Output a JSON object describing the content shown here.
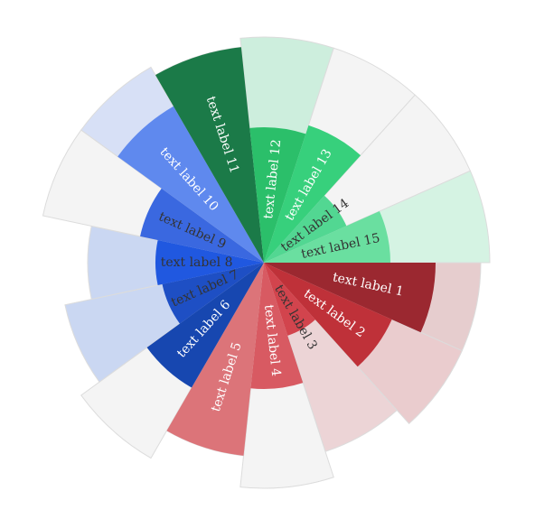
{
  "chart_data": {
    "type": "polar-bar",
    "title": "",
    "max_value": 100,
    "items": [
      {
        "label": "text label 1",
        "value": 76,
        "cap": 96,
        "color": "#9b2830",
        "bg": "#e6cdce",
        "text_color": "#ffffff"
      },
      {
        "label": "text label 2",
        "value": 62,
        "cap": 96,
        "color": "#bf3139",
        "bg": "#eaccce",
        "text_color": "#ffffff"
      },
      {
        "label": "text label 3",
        "value": 34,
        "cap": 88,
        "color": "#d2444d",
        "bg": "#ecd4d6",
        "text_color": "#333333"
      },
      {
        "label": "text label 4",
        "value": 56,
        "cap": 100,
        "color": "#d85a62",
        "bg": "#f4f4f4",
        "text_color": "#ffffff"
      },
      {
        "label": "text label 5",
        "value": 86,
        "cap": 86,
        "color": "#dc7479",
        "bg": "#f4f4f4",
        "text_color": "#ffffff"
      },
      {
        "label": "text label 6",
        "value": 64,
        "cap": 100,
        "color": "#1747b0",
        "bg": "#f4f4f4",
        "text_color": "#ffffff"
      },
      {
        "label": "text label 7",
        "value": 46,
        "cap": 90,
        "color": "#1e4fc4",
        "bg": "#cad7f2",
        "text_color": "#333333"
      },
      {
        "label": "text label 8",
        "value": 48,
        "cap": 78,
        "color": "#2058e0",
        "bg": "#cad7f2",
        "text_color": "#333333"
      },
      {
        "label": "text label 9",
        "value": 56,
        "cap": 100,
        "color": "#3a68e0",
        "bg": "#f4f4f4",
        "text_color": "#333333"
      },
      {
        "label": "text label 10",
        "value": 80,
        "cap": 100,
        "color": "#5f89ee",
        "bg": "#d7e0f6",
        "text_color": "#ffffff"
      },
      {
        "label": "text label 11",
        "value": 96,
        "cap": 96,
        "color": "#1b7a48",
        "bg": "#f4f4f4",
        "text_color": "#ffffff"
      },
      {
        "label": "text label 12",
        "value": 60,
        "cap": 100,
        "color": "#2bbf6a",
        "bg": "#cdeedd",
        "text_color": "#ffffff"
      },
      {
        "label": "text label 13",
        "value": 64,
        "cap": 100,
        "color": "#37d07c",
        "bg": "#f4f4f4",
        "text_color": "#ffffff"
      },
      {
        "label": "text label 14",
        "value": 40,
        "cap": 100,
        "color": "#52d792",
        "bg": "#f4f4f4",
        "text_color": "#333333"
      },
      {
        "label": "text label 15",
        "value": 56,
        "cap": 100,
        "color": "#6adfa0",
        "bg": "#d5f3e3",
        "text_color": "#333333"
      }
    ]
  }
}
